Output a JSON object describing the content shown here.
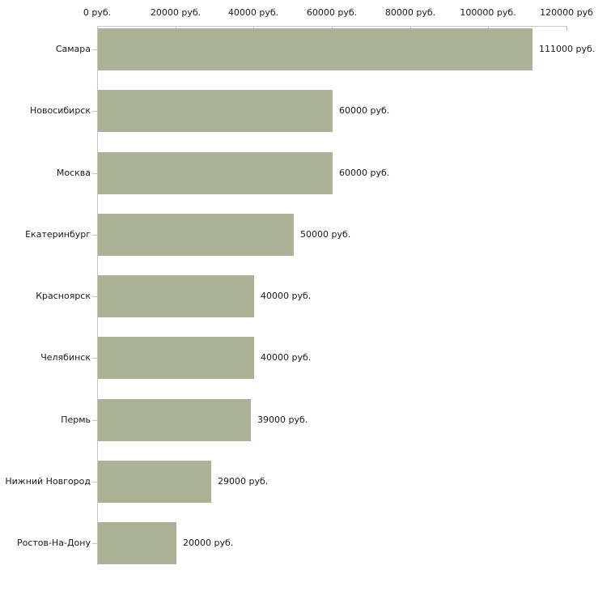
{
  "chart_data": {
    "type": "bar",
    "orientation": "horizontal",
    "title": "",
    "xlabel": "",
    "ylabel": "",
    "categories": [
      "Самара",
      "Новосибирск",
      "Москва",
      "Екатеринбург",
      "Красноярск",
      "Челябинск",
      "Пермь",
      "Нижний Новгород",
      "Ростов-На-Дону"
    ],
    "values": [
      111000,
      60000,
      60000,
      50000,
      40000,
      40000,
      39000,
      29000,
      20000
    ],
    "value_labels": [
      "111000 руб.",
      "60000 руб.",
      "60000 руб.",
      "50000 руб.",
      "40000 руб.",
      "40000 руб.",
      "39000 руб.",
      "29000 руб.",
      "20000 руб."
    ],
    "x_ticks": [
      {
        "value": 0,
        "label": "0 руб."
      },
      {
        "value": 20000,
        "label": "20000 руб."
      },
      {
        "value": 40000,
        "label": "40000 руб."
      },
      {
        "value": 60000,
        "label": "60000 руб."
      },
      {
        "value": 80000,
        "label": "80000 руб."
      },
      {
        "value": 100000,
        "label": "100000 руб."
      },
      {
        "value": 120000,
        "label": "120000 руб"
      }
    ],
    "xlim": [
      0,
      120000
    ],
    "grid": false,
    "legend": false,
    "axis_position": "top",
    "colors": {
      "bar": "#acb296",
      "axis_line": "#c6c6c6",
      "tick_mark": "#cbc79b",
      "text": "#1a1a1a",
      "background": "#ffffff"
    }
  }
}
